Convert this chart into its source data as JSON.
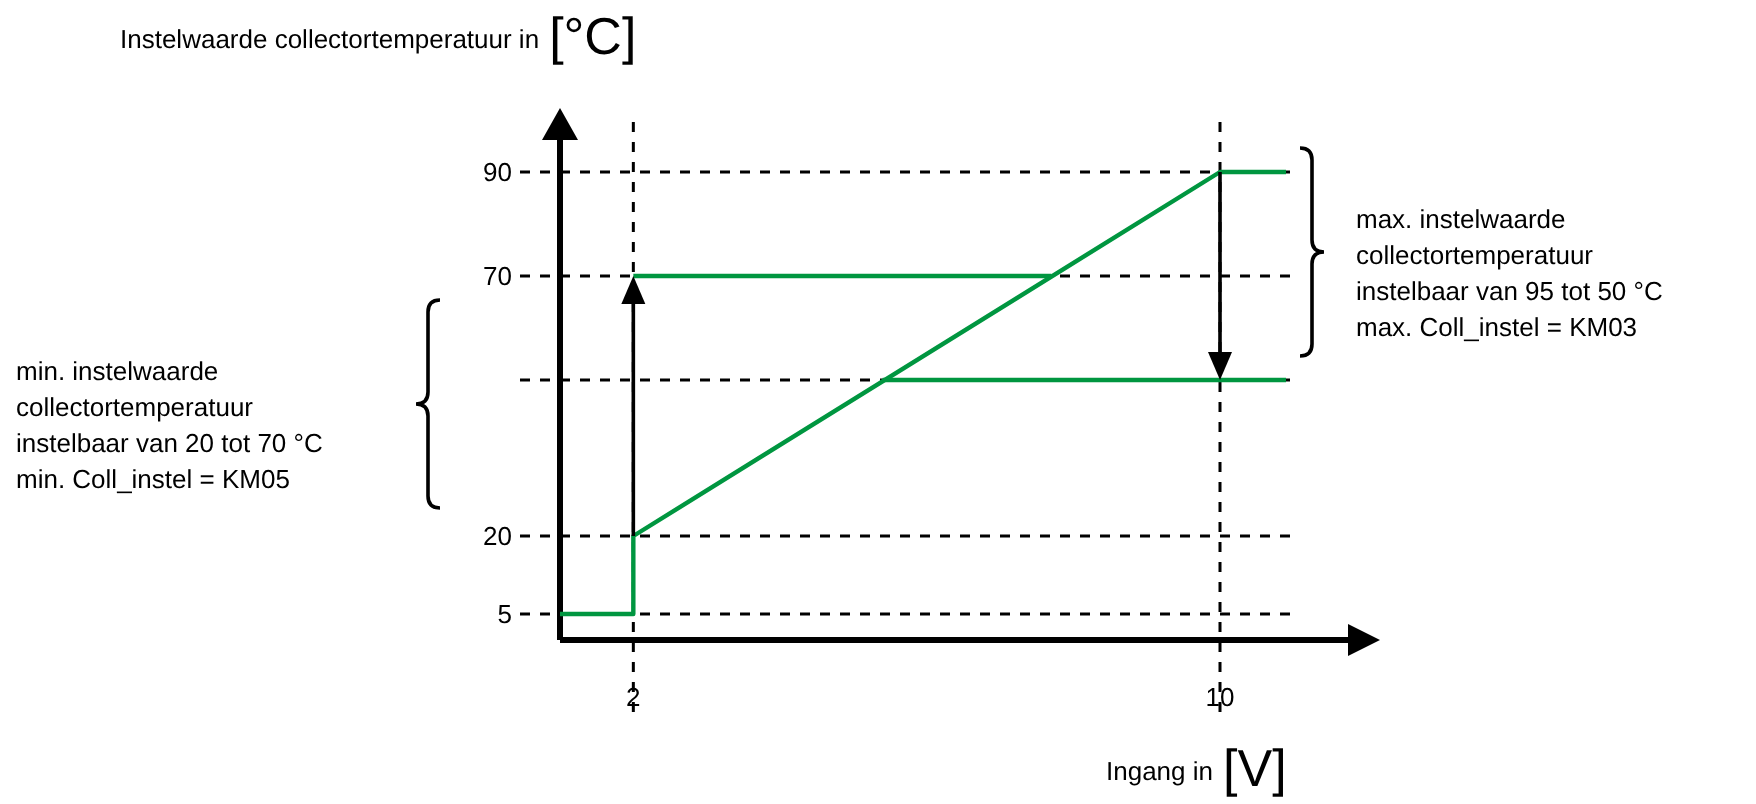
{
  "chart_data": {
    "type": "line",
    "xlabel": "Ingang in [V]",
    "ylabel": "Instelwaarde collectortemperatuur in [°C]",
    "xlim": [
      1,
      11.8
    ],
    "ylim": [
      0,
      100
    ],
    "xticks": [
      2,
      10
    ],
    "yticks": [
      5,
      20,
      70,
      90
    ],
    "series": [
      {
        "color": "#009640",
        "x": [
          1,
          2,
          2,
          10,
          10.9
        ],
        "values": [
          5,
          5,
          20,
          90,
          90
        ]
      },
      {
        "color": "#009640",
        "x": [
          2,
          7.7
        ],
        "values": [
          70,
          70
        ]
      },
      {
        "color": "#009640",
        "x": [
          5.4,
          10.9
        ],
        "values": [
          50,
          50
        ]
      }
    ],
    "ref_lines": [
      {
        "axis": "y",
        "value": 90,
        "line_style": "dashed",
        "color": "#000000"
      },
      {
        "axis": "y",
        "value": 70,
        "line_style": "dashed",
        "color": "#000000"
      },
      {
        "axis": "y",
        "value": 50,
        "line_style": "dashed",
        "color": "#000000"
      },
      {
        "axis": "y",
        "value": 20,
        "line_style": "dashed",
        "color": "#000000"
      },
      {
        "axis": "y",
        "value": 5,
        "line_style": "dashed",
        "color": "#000000"
      }
    ],
    "annotations": [
      "min. instelwaarde\ncollectortemperatuur\ninstelbaar van 20 tot 70 °C\nmin. Coll_instel = KM05",
      "max. instelwaarde\ncollectortemperatuur\ninstelbaar van 95 tot 50 °C\nmax. Coll_instel = KM03"
    ],
    "grid": "x",
    "marker": "none",
    "line_style": "solid"
  }
}
